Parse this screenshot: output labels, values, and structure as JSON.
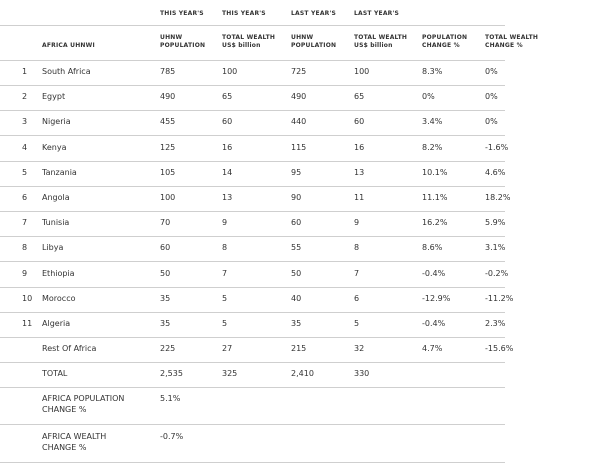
{
  "table": {
    "group_headers": [
      "THIS YEAR'S",
      "THIS YEAR'S",
      "LAST YEAR'S",
      "LAST YEAR'S"
    ],
    "columns": [
      [
        "AFRICA UHNWI"
      ],
      [
        "UHNW",
        "POPULATION"
      ],
      [
        "TOTAL WEALTH",
        "US$ billion"
      ],
      [
        "UHNW",
        "POPULATION"
      ],
      [
        "TOTAL WEALTH",
        "US$ billion"
      ],
      [
        "POPULATION",
        "CHANGE %"
      ],
      [
        "TOTAL WEALTH",
        "CHANGE %"
      ]
    ],
    "rows": [
      {
        "rank": "1",
        "cells": [
          "South Africa",
          "785",
          "100",
          "725",
          "100",
          "8.3%",
          "0%"
        ]
      },
      {
        "rank": "2",
        "cells": [
          "Egypt",
          "490",
          "65",
          "490",
          "65",
          "0%",
          "0%"
        ]
      },
      {
        "rank": "3",
        "cells": [
          "Nigeria",
          "455",
          "60",
          "440",
          "60",
          "3.4%",
          "0%"
        ]
      },
      {
        "rank": "4",
        "cells": [
          "Kenya",
          "125",
          "16",
          "115",
          "16",
          "8.2%",
          "-1.6%"
        ]
      },
      {
        "rank": "5",
        "cells": [
          "Tanzania",
          "105",
          "14",
          "95",
          "13",
          "10.1%",
          "4.6%"
        ]
      },
      {
        "rank": "6",
        "cells": [
          "Angola",
          "100",
          "13",
          "90",
          "11",
          "11.1%",
          "18.2%"
        ]
      },
      {
        "rank": "7",
        "cells": [
          "Tunisia",
          "70",
          "9",
          "60",
          "9",
          "16.2%",
          "5.9%"
        ]
      },
      {
        "rank": "8",
        "cells": [
          "Libya",
          "60",
          "8",
          "55",
          "8",
          "8.6%",
          "3.1%"
        ]
      },
      {
        "rank": "9",
        "cells": [
          "Ethiopia",
          "50",
          "7",
          "50",
          "7",
          "-0.4%",
          "-0.2%"
        ]
      },
      {
        "rank": "10",
        "cells": [
          "Morocco",
          "35",
          "5",
          "40",
          "6",
          "-12.9%",
          "-11.2%"
        ]
      },
      {
        "rank": "11",
        "cells": [
          "Algeria",
          "35",
          "5",
          "35",
          "5",
          "-0.4%",
          "2.3%"
        ]
      },
      {
        "cells": [
          "Rest Of Africa",
          "225",
          "27",
          "215",
          "32",
          "4.7%",
          "-15.6%"
        ]
      },
      {
        "cells": [
          "TOTAL",
          "2,535",
          "325",
          "2,410",
          "330"
        ]
      }
    ],
    "summary": [
      {
        "label": [
          "AFRICA POPULATION",
          "CHANGE %"
        ],
        "value": "5.1%"
      },
      {
        "label": [
          "AFRICA WEALTH",
          "CHANGE %"
        ],
        "value": "-0.7%"
      }
    ]
  }
}
